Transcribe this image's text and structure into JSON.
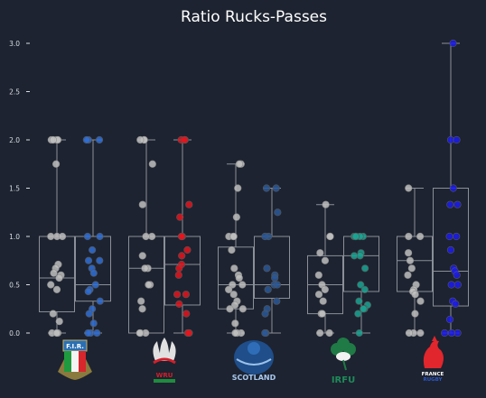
{
  "colors": {
    "background": "#1d2330",
    "box_stroke": "#8a8f98",
    "text": "#ffffff",
    "axis": "#d9dde3",
    "left_points": "#bfbfbf"
  },
  "chart_data": {
    "type": "box",
    "title": "Ratio Rucks-Passes",
    "xlabel": "",
    "ylabel": "",
    "ylim": [
      0,
      3.1
    ],
    "yticks": [
      "0.0",
      "0.5",
      "1.0",
      "1.5",
      "2.0",
      "2.5",
      "3.0"
    ],
    "grid": false,
    "teams": [
      {
        "name": "Italy",
        "logo_text": "F.I.R.",
        "color": "#2f6fd6",
        "series": [
          {
            "box": {
              "q1": 0.22,
              "median": 0.57,
              "q3": 1.0,
              "whisker_low": 0.0,
              "whisker_high": 2.0
            },
            "points": [
              2.0,
              2.0,
              2.0,
              2.0,
              1.75,
              1.0,
              1.0,
              1.0,
              0.71,
              0.67,
              0.62,
              0.6,
              0.57,
              0.5,
              0.45,
              0.2,
              0.12,
              0.0,
              0.0,
              0.0
            ]
          },
          {
            "box": {
              "q1": 0.33,
              "median": 0.5,
              "q3": 1.0,
              "whisker_low": 0.0,
              "whisker_high": 2.0
            },
            "points": [
              2.0,
              2.0,
              2.0,
              1.0,
              1.0,
              0.86,
              0.75,
              0.75,
              0.67,
              0.62,
              0.5,
              0.45,
              0.43,
              0.33,
              0.25,
              0.2,
              0.1,
              0.0,
              0.0,
              0.0
            ]
          }
        ]
      },
      {
        "name": "Wales",
        "logo_text": "WRU",
        "color": "#e5141d",
        "series": [
          {
            "box": {
              "q1": 0.0,
              "median": 0.67,
              "q3": 1.0,
              "whisker_low": 0.0,
              "whisker_high": 2.0
            },
            "points": [
              2.0,
              2.0,
              2.0,
              1.75,
              1.33,
              1.0,
              1.0,
              0.8,
              0.67,
              0.67,
              0.5,
              0.5,
              0.33,
              0.25,
              0.0,
              0.0,
              0.0
            ]
          },
          {
            "box": {
              "q1": 0.29,
              "median": 0.71,
              "q3": 1.0,
              "whisker_low": 0.0,
              "whisker_high": 2.0
            },
            "points": [
              2.0,
              2.0,
              2.0,
              1.33,
              1.2,
              1.0,
              1.0,
              1.0,
              0.86,
              0.8,
              0.71,
              0.67,
              0.6,
              0.4,
              0.4,
              0.3,
              0.2,
              0.0,
              0.0,
              0.0
            ]
          }
        ]
      },
      {
        "name": "Scotland",
        "logo_text": "SCOTLAND",
        "color": "#2a5898",
        "series": [
          {
            "box": {
              "q1": 0.25,
              "median": 0.5,
              "q3": 0.89,
              "whisker_low": 0.0,
              "whisker_high": 1.75
            },
            "points": [
              1.75,
              1.75,
              1.5,
              1.2,
              1.0,
              1.0,
              1.0,
              0.86,
              0.67,
              0.6,
              0.57,
              0.5,
              0.5,
              0.45,
              0.4,
              0.33,
              0.29,
              0.25,
              0.25,
              0.1,
              0.0,
              0.0,
              0.0
            ]
          },
          {
            "box": {
              "q1": 0.36,
              "median": 0.5,
              "q3": 1.0,
              "whisker_low": 0.0,
              "whisker_high": 1.5
            },
            "points": [
              1.5,
              1.5,
              1.25,
              1.0,
              1.0,
              0.67,
              0.6,
              0.57,
              0.5,
              0.5,
              0.45,
              0.33,
              0.25,
              0.2,
              0.0,
              0.0
            ]
          }
        ]
      },
      {
        "name": "Ireland",
        "logo_text": "IRFU",
        "color": "#1aa593",
        "series": [
          {
            "box": {
              "q1": 0.2,
              "median": 0.5,
              "q3": 0.8,
              "whisker_low": 0.0,
              "whisker_high": 1.33
            },
            "points": [
              1.33,
              1.0,
              1.0,
              0.83,
              0.75,
              0.6,
              0.5,
              0.45,
              0.4,
              0.33,
              0.2,
              0.2,
              0.0,
              0.0
            ]
          },
          {
            "box": {
              "q1": 0.43,
              "median": 0.8,
              "q3": 1.0,
              "whisker_low": 0.0,
              "whisker_high": 1.0
            },
            "points": [
              1.0,
              1.0,
              1.0,
              1.0,
              1.0,
              1.0,
              0.83,
              0.8,
              0.8,
              0.67,
              0.5,
              0.45,
              0.33,
              0.29,
              0.25,
              0.25,
              0.2,
              0.0
            ]
          }
        ]
      },
      {
        "name": "France",
        "logo_text": "FRANCE RUGBY",
        "color": "#1b1bf0",
        "series": [
          {
            "box": {
              "q1": 0.43,
              "median": 0.75,
              "q3": 1.0,
              "whisker_low": 0.0,
              "whisker_high": 1.5
            },
            "points": [
              1.5,
              1.0,
              1.0,
              0.83,
              0.75,
              0.67,
              0.6,
              0.5,
              0.45,
              0.43,
              0.4,
              0.33,
              0.2,
              0.0,
              0.0,
              0.0
            ]
          },
          {
            "box": {
              "q1": 0.28,
              "median": 0.64,
              "q3": 1.5,
              "whisker_low": 0.0,
              "whisker_high": 3.0
            },
            "points": [
              3.0,
              2.0,
              2.0,
              1.5,
              1.33,
              1.33,
              1.0,
              1.0,
              0.86,
              0.67,
              0.64,
              0.6,
              0.5,
              0.5,
              0.33,
              0.3,
              0.14,
              0.0,
              0.0,
              0.0
            ]
          }
        ]
      }
    ]
  }
}
